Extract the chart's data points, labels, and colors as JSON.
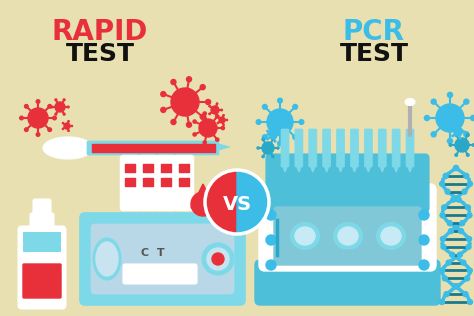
{
  "bg_color": "#e8e0b0",
  "title_left": "RAPID",
  "title_left_color": "#e8303a",
  "title_right": "PCR",
  "title_right_color": "#3bbde8",
  "subtitle": "TEST",
  "subtitle_color": "#111111",
  "vs_text": "VS",
  "virus_red": "#e8303a",
  "virus_teal": "#3bbde8",
  "teal_light": "#7dd8e8",
  "teal_mid": "#4dbfd8",
  "teal_dark": "#2aa8c8",
  "teal_darker": "#1a8090",
  "red_dark": "#c01818",
  "white": "#ffffff",
  "off_white": "#e8f0f5",
  "gray_light": "#c8d8e0",
  "dna_dark": "#1a7a8a",
  "outline": "#666666"
}
